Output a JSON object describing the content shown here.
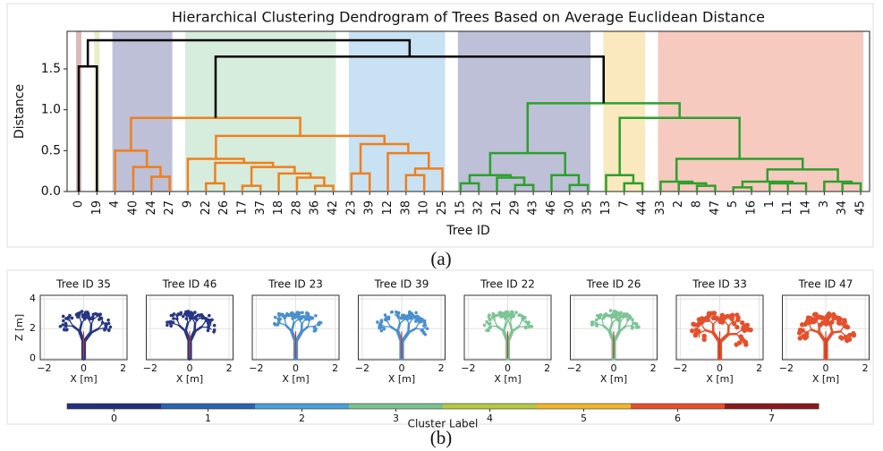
{
  "chart_data": [
    {
      "type": "dendrogram",
      "title": "Hierarchical Clustering Dendrogram of Trees Based on Average Euclidean Distance",
      "xlabel": "Tree ID",
      "ylabel": "Distance",
      "ylim": [
        0,
        1.96
      ],
      "yticks": [
        {
          "value": 0,
          "label": "0.0"
        },
        {
          "value": 0.5,
          "label": "0.5"
        },
        {
          "value": 1,
          "label": "1.0"
        },
        {
          "value": 1.5,
          "label": "1.5"
        }
      ],
      "leaves": [
        "0",
        "19",
        "4",
        "40",
        "24",
        "27",
        "9",
        "22",
        "26",
        "17",
        "37",
        "18",
        "28",
        "36",
        "42",
        "23",
        "39",
        "12",
        "38",
        "10",
        "25",
        "15",
        "32",
        "21",
        "29",
        "43",
        "46",
        "30",
        "35",
        "13",
        "7",
        "44",
        "33",
        "2",
        "8",
        "47",
        "5",
        "16",
        "1",
        "11",
        "14",
        "3",
        "34",
        "45"
      ],
      "leaf_clusters": [
        7,
        4,
        0,
        0,
        0,
        0,
        3,
        3,
        3,
        3,
        3,
        3,
        3,
        3,
        3,
        2,
        2,
        2,
        2,
        2,
        2,
        0,
        0,
        0,
        0,
        0,
        0,
        0,
        0,
        5,
        5,
        5,
        6,
        6,
        6,
        6,
        6,
        6,
        6,
        6,
        6,
        6,
        6,
        6
      ],
      "tree": {
        "height": 1.85,
        "color": "#000000",
        "children": [
          {
            "height": 1.53,
            "children": [
              0,
              1
            ]
          },
          {
            "height": 1.65,
            "children": [
              {
                "height": 0.9,
                "color": "#f07f1c",
                "children": [
                  {
                    "height": 0.5,
                    "children": [
                      2,
                      {
                        "height": 0.3,
                        "children": [
                          3,
                          {
                            "height": 0.18,
                            "children": [
                              4,
                              5
                            ]
                          }
                        ]
                      }
                    ]
                  },
                  {
                    "height": 0.68,
                    "children": [
                      {
                        "height": 0.4,
                        "children": [
                          6,
                          {
                            "height": 0.35,
                            "children": [
                              {
                                "height": 0.1,
                                "children": [
                                  7,
                                  8
                                ]
                              },
                              {
                                "height": 0.3,
                                "children": [
                                  {
                                    "height": 0.07,
                                    "children": [
                                      9,
                                      10
                                    ]
                                  },
                                  {
                                    "height": 0.22,
                                    "children": [
                                      11,
                                      {
                                        "height": 0.17,
                                        "children": [
                                          12,
                                          {
                                            "height": 0.07,
                                            "children": [
                                              13,
                                              14
                                            ]
                                          }
                                        ]
                                      }
                                    ]
                                  }
                                ]
                              }
                            ]
                          }
                        ]
                      },
                      {
                        "height": 0.58,
                        "children": [
                          {
                            "height": 0.22,
                            "children": [
                              15,
                              16
                            ]
                          },
                          {
                            "height": 0.47,
                            "children": [
                              17,
                              {
                                "height": 0.28,
                                "children": [
                                  {
                                    "height": 0.2,
                                    "children": [
                                      18,
                                      19
                                    ]
                                  },
                                  20
                                ]
                              }
                            ]
                          }
                        ]
                      }
                    ]
                  }
                ]
              },
              {
                "height": 1.08,
                "color": "#2ca02c",
                "children": [
                  {
                    "height": 0.47,
                    "children": [
                      {
                        "height": 0.2,
                        "children": [
                          {
                            "height": 0.1,
                            "children": [
                              21,
                              22
                            ]
                          },
                          {
                            "height": 0.17,
                            "children": [
                              23,
                              {
                                "height": 0.08,
                                "children": [
                                  24,
                                  25
                                ]
                              }
                            ]
                          }
                        ]
                      },
                      {
                        "height": 0.2,
                        "children": [
                          26,
                          {
                            "height": 0.08,
                            "children": [
                              27,
                              28
                            ]
                          }
                        ]
                      }
                    ]
                  },
                  {
                    "height": 0.9,
                    "children": [
                      {
                        "height": 0.2,
                        "children": [
                          29,
                          {
                            "height": 0.1,
                            "children": [
                              30,
                              31
                            ]
                          }
                        ]
                      },
                      {
                        "height": 0.4,
                        "children": [
                          {
                            "height": 0.12,
                            "children": [
                              32,
                              {
                                "height": 0.1,
                                "children": [
                                  33,
                                  {
                                    "height": 0.07,
                                    "children": [
                                      34,
                                      35
                                    ]
                                  }
                                ]
                              }
                            ]
                          },
                          {
                            "height": 0.27,
                            "children": [
                              {
                                "height": 0.12,
                                "children": [
                                  {
                                    "height": 0.05,
                                    "children": [
                                      36,
                                      37
                                    ]
                                  },
                                  {
                                    "height": 0.1,
                                    "children": [
                                      {
                                        "height": 0.1,
                                        "children": [
                                          38,
                                          39
                                        ]
                                      },
                                      40
                                    ]
                                  }
                                ]
                              },
                              {
                                "height": 0.12,
                                "children": [
                                  41,
                                  {
                                    "height": 0.1,
                                    "children": [
                                      42,
                                      43
                                    ]
                                  }
                                ]
                              }
                            ]
                          }
                        ]
                      }
                    ]
                  }
                ]
              }
            ]
          }
        ]
      }
    },
    {
      "type": "point-cloud",
      "xlabel": "X [m]",
      "ylabel": "Z [m]",
      "xlim": [
        -2.2,
        2.2
      ],
      "ylim": [
        -0.1,
        4.25
      ],
      "xticks": [
        {
          "value": -2,
          "label": "−2"
        },
        0,
        2
      ],
      "yticks": [
        0,
        2,
        4
      ],
      "panels": [
        {
          "title": "Tree ID 35",
          "color": "#283782"
        },
        {
          "title": "Tree ID 46",
          "color": "#283782"
        },
        {
          "title": "Tree ID 23",
          "color": "#4a8fcf"
        },
        {
          "title": "Tree ID 39",
          "color": "#4a8fcf"
        },
        {
          "title": "Tree ID 22",
          "color": "#7cc495"
        },
        {
          "title": "Tree ID 26",
          "color": "#7cc495"
        },
        {
          "title": "Tree ID 33",
          "color": "#e4502c"
        },
        {
          "title": "Tree ID 47",
          "color": "#e4502c"
        }
      ]
    },
    {
      "type": "colorbar",
      "label": "Cluster Label",
      "xlim": [
        -0.5,
        7.5
      ],
      "xticks": [
        0,
        1,
        2,
        3,
        4,
        5,
        6,
        7
      ],
      "colors": [
        "#23307a",
        "#2a63b0",
        "#4a9fd8",
        "#78c28f",
        "#b5c840",
        "#f0b42a",
        "#e5502a",
        "#8b1a1a"
      ]
    }
  ],
  "captions": [
    "(a)",
    "(b)"
  ]
}
